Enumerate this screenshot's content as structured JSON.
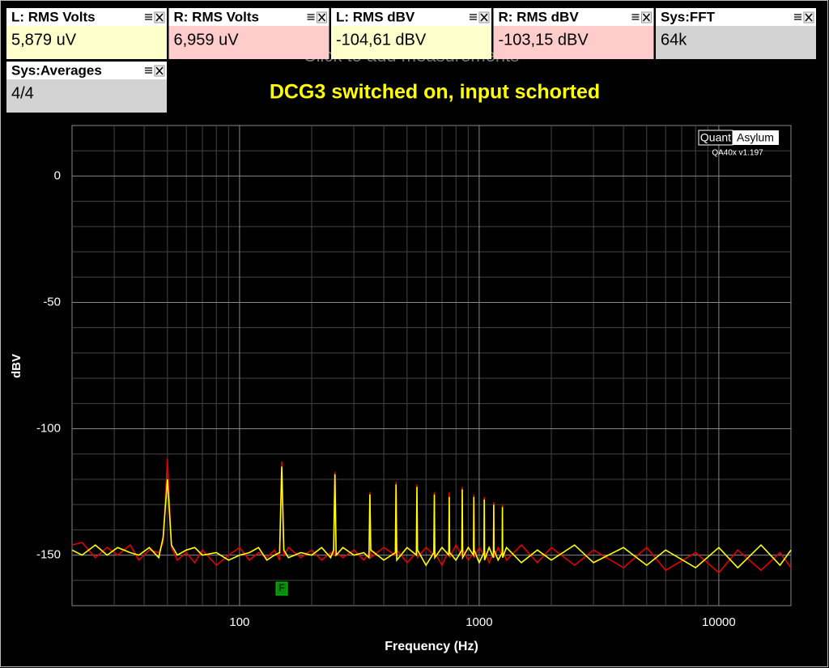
{
  "measurements": [
    {
      "title": "L: RMS Volts",
      "value": "5,879 uV",
      "color": "#ffffcc"
    },
    {
      "title": "R: RMS Volts",
      "value": "6,959 uV",
      "color": "#ffcccc"
    },
    {
      "title": "L: RMS dBV",
      "value": "-104,61 dBV",
      "color": "#ffffcc"
    },
    {
      "title": "R: RMS dBV",
      "value": "-103,15 dBV",
      "color": "#ffcccc"
    },
    {
      "title": "Sys:FFT",
      "value": "64k",
      "color": "#d3d3d3"
    },
    {
      "title": "Sys:Averages",
      "value": "4/4",
      "color": "#d3d3d3"
    }
  ],
  "placeholder": "Click to add measurements",
  "chart_data": {
    "type": "line",
    "title": "DCG3 switched on, input schorted",
    "xlabel": "Frequency (Hz)",
    "ylabel": "dBV",
    "logo": {
      "left": "Quant",
      "right": "Asylum",
      "version": "QA40x v1.197"
    },
    "marker": {
      "label": "F",
      "x": 150
    },
    "x": [
      20,
      22,
      25,
      28,
      31,
      35,
      38,
      42,
      46,
      48,
      50,
      52,
      55,
      60,
      65,
      70,
      80,
      90,
      100,
      110,
      120,
      130,
      140,
      147,
      150,
      153,
      160,
      180,
      200,
      220,
      240,
      247,
      250,
      253,
      270,
      300,
      330,
      347,
      350,
      353,
      400,
      447,
      450,
      453,
      500,
      547,
      550,
      553,
      600,
      647,
      650,
      653,
      700,
      747,
      750,
      753,
      800,
      847,
      850,
      853,
      900,
      947,
      950,
      953,
      1000,
      1047,
      1050,
      1053,
      1100,
      1147,
      1150,
      1153,
      1200,
      1247,
      1250,
      1253,
      1300,
      1500,
      1750,
      2000,
      2500,
      3000,
      4000,
      5000,
      6000,
      8000,
      10000,
      12000,
      15000,
      18000,
      20000
    ],
    "series": [
      {
        "color": "#e00000",
        "values": [
          -146,
          -145,
          -151,
          -147,
          -150,
          -146,
          -152,
          -148,
          -149,
          -145,
          -112,
          -147,
          -152,
          -149,
          -153,
          -148,
          -154,
          -150,
          -147,
          -152,
          -149,
          -151,
          -148,
          -152,
          -113,
          -150,
          -147,
          -151,
          -148,
          -152,
          -149,
          -150,
          -117,
          -149,
          -151,
          -148,
          -152,
          -149,
          -125,
          -151,
          -147,
          -150,
          -121,
          -148,
          -153,
          -149,
          -122,
          -151,
          -147,
          -150,
          -125,
          -149,
          -154,
          -148,
          -125,
          -151,
          -146,
          -150,
          -123,
          -148,
          -152,
          -149,
          -126,
          -151,
          -147,
          -150,
          -127,
          -148,
          -153,
          -149,
          -129,
          -151,
          -147,
          -150,
          -130,
          -148,
          -152,
          -146,
          -153,
          -147,
          -154,
          -148,
          -155,
          -147,
          -156,
          -149,
          -157,
          -148,
          -156,
          -149,
          -155
        ]
      },
      {
        "color": "#ffff00",
        "values": [
          -148,
          -150,
          -146,
          -150,
          -147,
          -149,
          -150,
          -147,
          -151,
          -143,
          -120,
          -146,
          -150,
          -148,
          -147,
          -150,
          -149,
          -152,
          -150,
          -149,
          -147,
          -152,
          -150,
          -149,
          -115,
          -148,
          -151,
          -149,
          -150,
          -147,
          -151,
          -148,
          -118,
          -150,
          -147,
          -150,
          -149,
          -151,
          -126,
          -148,
          -152,
          -149,
          -122,
          -152,
          -147,
          -150,
          -123,
          -148,
          -154,
          -149,
          -126,
          -151,
          -147,
          -150,
          -127,
          -149,
          -152,
          -148,
          -124,
          -151,
          -147,
          -150,
          -127,
          -148,
          -153,
          -149,
          -128,
          -152,
          -147,
          -151,
          -130,
          -148,
          -152,
          -149,
          -131,
          -151,
          -147,
          -153,
          -148,
          -152,
          -146,
          -153,
          -147,
          -154,
          -148,
          -155,
          -147,
          -155,
          -146,
          -154,
          -148
        ]
      }
    ],
    "xlim": [
      20,
      20000
    ],
    "ylim": [
      -170,
      20
    ],
    "xticks": [
      100,
      1000,
      10000
    ],
    "yticks": [
      0,
      -50,
      -100,
      -150
    ],
    "xscale": "log",
    "grid": true,
    "y_grid_step": 10
  }
}
